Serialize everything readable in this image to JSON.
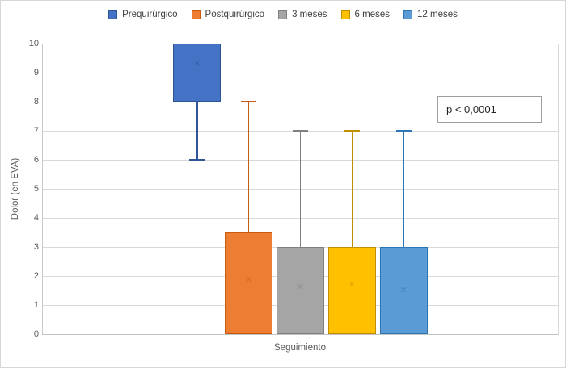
{
  "legend": {
    "items": [
      {
        "label": "Prequirúrgico",
        "fill": "#4472C4",
        "stroke": "#2F5597"
      },
      {
        "label": "Postquirúrgico",
        "fill": "#ED7D31",
        "stroke": "#C55A11"
      },
      {
        "label": "3 meses",
        "fill": "#A5A5A5",
        "stroke": "#7F7F7F"
      },
      {
        "label": "6 meses",
        "fill": "#FFC000",
        "stroke": "#BF8F00"
      },
      {
        "label": "12 meses",
        "fill": "#5B9BD5",
        "stroke": "#2E75B6"
      }
    ]
  },
  "annotation": {
    "text": "p < 0,0001"
  },
  "chart_data": {
    "type": "boxplot",
    "title": "",
    "xlabel": "Seguimiento",
    "ylabel": "Dolor (en EVA)",
    "categories": [
      "Seguimiento"
    ],
    "ylim": [
      0,
      10
    ],
    "yticks": [
      0,
      1,
      2,
      3,
      4,
      5,
      6,
      7,
      8,
      9,
      10
    ],
    "grid": true,
    "legend_position": "top",
    "series": [
      {
        "name": "Prequirúrgico",
        "q1": 8,
        "q3": 10,
        "whisker_low": 6,
        "whisker_high": 10,
        "mean": 9.3,
        "fill": "#4472C4",
        "stroke": "#2F5597"
      },
      {
        "name": "Postquirúrgico",
        "q1": 0,
        "q3": 3.5,
        "whisker_low": 0,
        "whisker_high": 8,
        "mean": 1.85,
        "fill": "#ED7D31",
        "stroke": "#C55A11"
      },
      {
        "name": "3 meses",
        "q1": 0,
        "q3": 3,
        "whisker_low": 0,
        "whisker_high": 7,
        "mean": 1.6,
        "fill": "#A5A5A5",
        "stroke": "#7F7F7F"
      },
      {
        "name": "6 meses",
        "q1": 0,
        "q3": 3,
        "whisker_low": 0,
        "whisker_high": 7,
        "mean": 1.7,
        "fill": "#FFC000",
        "stroke": "#BF8F00"
      },
      {
        "name": "12 meses",
        "q1": 0,
        "q3": 3,
        "whisker_low": 0,
        "whisker_high": 7,
        "mean": 1.5,
        "fill": "#5B9BD5",
        "stroke": "#2E75B6"
      }
    ]
  }
}
